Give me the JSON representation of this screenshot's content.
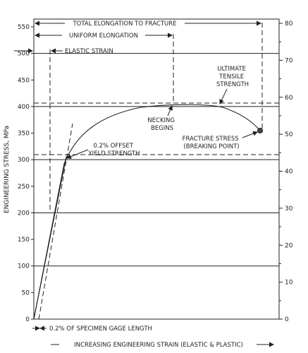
{
  "chart_data": {
    "type": "line",
    "ylabel": "ENGINEERING STRESS, MPa",
    "xlabel": "INCREASING ENGINEERING STRAIN (ELASTIC & PLASTIC)",
    "left_axis": {
      "min": 0,
      "max": 550,
      "ticks": [
        0,
        50,
        100,
        150,
        200,
        250,
        300,
        350,
        400,
        450,
        500,
        550
      ]
    },
    "right_axis": {
      "min": 0,
      "max": 80,
      "ticks": [
        0,
        10,
        20,
        30,
        40,
        50,
        60,
        70,
        80
      ]
    },
    "grid": "horizontal at 100, 200, 300, 400, 500 MPa",
    "annotations": {
      "total_elongation": "TOTAL ELONGATION TO FRACTURE",
      "uniform_elongation": "UNIFORM ELONGATION",
      "elastic_strain": "ELASTIC STRAIN",
      "uts": [
        "ULTIMATE",
        "TENSILE",
        "STRENGTH"
      ],
      "necking": [
        "NECKING",
        "BEGINS"
      ],
      "fracture": [
        "FRACTURE STRESS",
        "(BREAKING POINT)"
      ],
      "yield": [
        "0.2% OFFSET",
        "YIELD STRENGTH"
      ],
      "offset_note": "0.2% OF SPECIMEN GAGE LENGTH"
    },
    "key_values": {
      "yield_strength_mpa": 310,
      "ultimate_tensile_strength_mpa": 407,
      "fracture_stress_mpa": 358
    },
    "curve_mpa": [
      0,
      150,
      250,
      300,
      340,
      375,
      395,
      404,
      407,
      405,
      395,
      375,
      358
    ]
  }
}
